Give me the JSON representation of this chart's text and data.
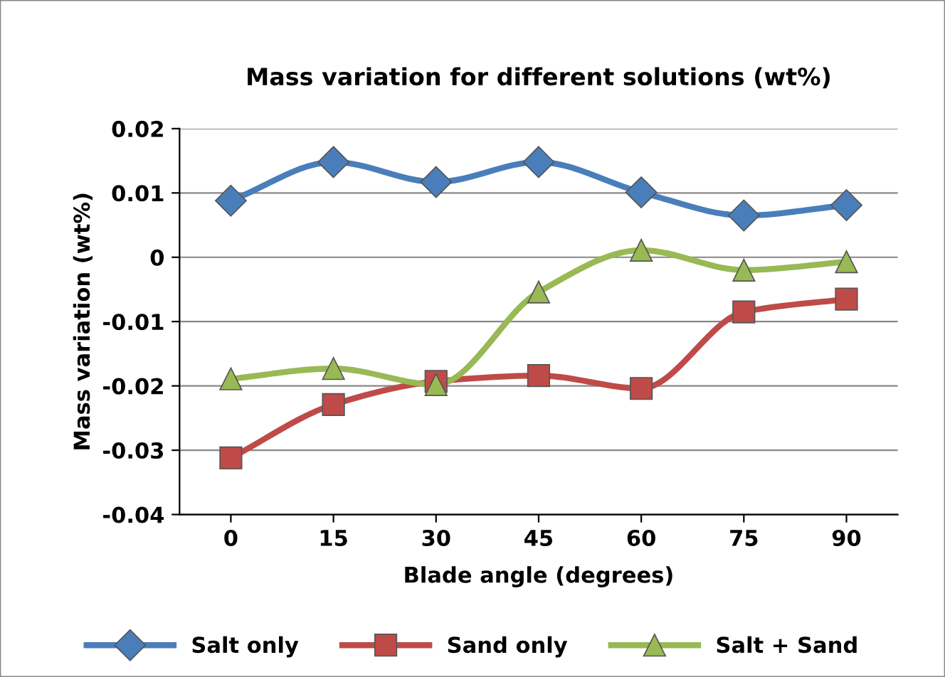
{
  "chart_data": {
    "type": "line",
    "title": "Mass variation for different solutions (wt%)",
    "xlabel": "Blade angle (degrees)",
    "ylabel": "Mass variation (wt%)",
    "categories": [
      "0",
      "15",
      "30",
      "45",
      "60",
      "75",
      "90"
    ],
    "series": [
      {
        "name": "Salt only",
        "color": "#4a7ebb",
        "marker": "diamond",
        "values": [
          0.0088,
          0.0148,
          0.0117,
          0.0148,
          0.0101,
          0.0065,
          0.0081
        ]
      },
      {
        "name": "Sand only",
        "color": "#be4b48",
        "marker": "square",
        "values": [
          -0.0312,
          -0.0229,
          -0.0193,
          -0.0184,
          -0.0204,
          -0.0085,
          -0.0065
        ]
      },
      {
        "name": "Salt + Sand",
        "color": "#98b954",
        "marker": "triangle",
        "values": [
          -0.0189,
          -0.0173,
          -0.0198,
          -0.0054,
          0.0011,
          -0.002,
          -0.0007
        ]
      }
    ],
    "ylim": [
      -0.04,
      0.02
    ],
    "yticks": [
      -0.04,
      -0.03,
      -0.02,
      -0.01,
      0,
      0.01,
      0.02
    ],
    "grid": "y",
    "legend": "bottom",
    "line_style": "solid"
  }
}
